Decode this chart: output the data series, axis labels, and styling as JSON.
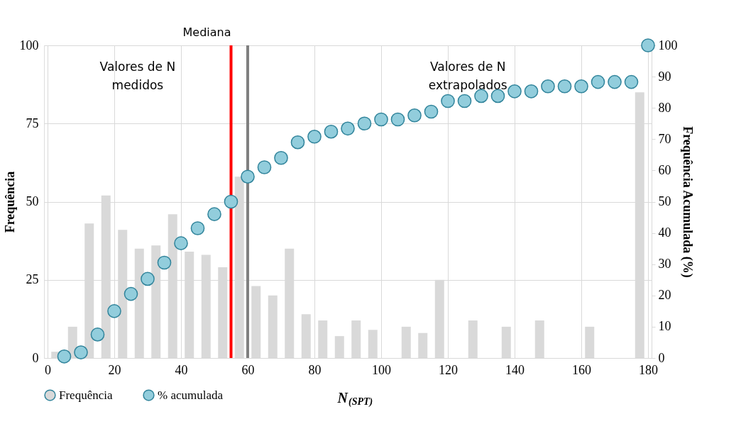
{
  "chart_data": {
    "type": "bar",
    "xlabel": "N$_{(SPT)}$",
    "ylabel": "Frequência",
    "y2label": "Frequência Acumulada (%)",
    "xlim": [
      0,
      180
    ],
    "xticks": [
      0,
      20,
      40,
      60,
      80,
      100,
      120,
      140,
      160,
      180
    ],
    "ylim": [
      0,
      100
    ],
    "yticks": [
      0,
      25,
      50,
      75,
      100
    ],
    "y2lim": [
      0,
      100
    ],
    "y2ticks": [
      0,
      10,
      20,
      30,
      40,
      50,
      60,
      70,
      80,
      90,
      100
    ],
    "grid": true,
    "legend": "bottom",
    "series": [
      {
        "name": "Frequência",
        "color": "#d9d9d9",
        "x": [
          2.5,
          7.5,
          12.5,
          17.5,
          22.5,
          27.5,
          32.5,
          37.5,
          42.5,
          47.5,
          52.5,
          57.5,
          62.5,
          67.5,
          72.5,
          77.5,
          82.5,
          87.5,
          92.5,
          97.5,
          102.5,
          107.5,
          112.5,
          117.5,
          122.5,
          127.5,
          132.5,
          137.5,
          142.5,
          147.5,
          152.5,
          157.5,
          162.5,
          167.5,
          172.5,
          177.5
        ],
        "values": [
          2,
          10,
          43,
          52,
          41,
          35,
          36,
          46,
          34,
          33,
          29,
          58,
          23,
          20,
          35,
          14,
          12,
          7,
          12,
          9,
          0,
          10,
          8,
          25,
          0,
          12,
          0,
          10,
          0,
          12,
          0,
          0,
          10,
          0,
          0,
          85
        ]
      },
      {
        "name": "% acumulada",
        "type": "scatter",
        "axis": "y2",
        "marker": "circle",
        "color": "#92cddc",
        "x": [
          5,
          10,
          15,
          20,
          25,
          30,
          35,
          40,
          45,
          50,
          55,
          60,
          65,
          70,
          75,
          80,
          85,
          90,
          95,
          100,
          105,
          110,
          115,
          120,
          125,
          130,
          135,
          140,
          145,
          150,
          155,
          160,
          165,
          170,
          175,
          180
        ],
        "values": [
          0.5,
          1.8,
          7.5,
          15,
          20.5,
          25.3,
          30.5,
          36.7,
          41.5,
          46,
          50,
          58,
          61,
          64,
          69,
          70.8,
          72.4,
          73.4,
          75,
          76.3,
          76.3,
          77.6,
          78.8,
          82.2,
          82.2,
          83.8,
          83.8,
          85.3,
          85.3,
          86.9,
          86.9,
          86.9,
          88.3,
          88.3,
          88.3,
          100
        ]
      }
    ],
    "ref_lines": [
      {
        "axis": "x",
        "value": 55,
        "label": "Mediana",
        "color": "#ff0000"
      },
      {
        "axis": "x",
        "value": 60,
        "label": null,
        "color": "#808080"
      }
    ],
    "annotations": [
      "Valores de N\nmedidos",
      "Valores de N\nextrapolados"
    ]
  }
}
